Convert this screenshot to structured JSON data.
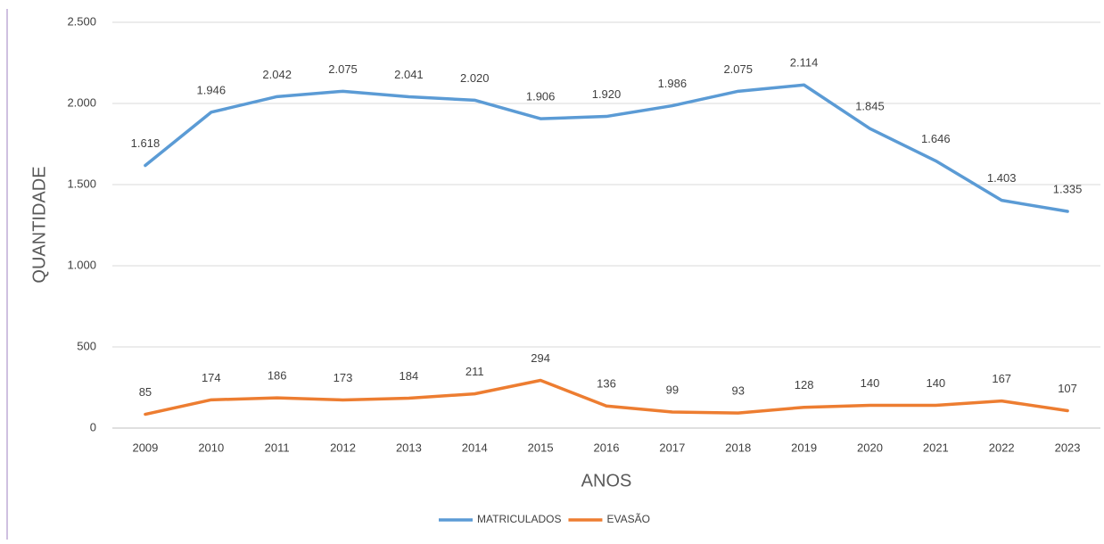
{
  "chart_data": {
    "type": "line",
    "ylabel": "QUANTIDADE",
    "xlabel": "ANOS",
    "categories": [
      "2009",
      "2010",
      "2011",
      "2012",
      "2013",
      "2014",
      "2015",
      "2016",
      "2017",
      "2018",
      "2019",
      "2020",
      "2021",
      "2022",
      "2023"
    ],
    "series": [
      {
        "name": "MATRICULADOS",
        "color": "#5b9bd5",
        "values": [
          1618,
          1946,
          2042,
          2075,
          2041,
          2020,
          1906,
          1920,
          1986,
          2075,
          2114,
          1845,
          1646,
          1403,
          1335
        ],
        "value_labels": [
          "1.618",
          "1.946",
          "2.042",
          "2.075",
          "2.041",
          "2.020",
          "1.906",
          "1.920",
          "1.986",
          "2.075",
          "2.114",
          "1.845",
          "1.646",
          "1.403",
          "1.335"
        ]
      },
      {
        "name": "EVASÃO",
        "color": "#ed7d31",
        "values": [
          85,
          174,
          186,
          173,
          184,
          211,
          294,
          136,
          99,
          93,
          128,
          140,
          140,
          167,
          107
        ]
      }
    ],
    "ylim": [
      0,
      2500
    ],
    "yticks": [
      0,
      500,
      {
        "value": 1000,
        "label": "1.000"
      },
      {
        "value": 1500,
        "label": "1.500"
      },
      {
        "value": 2000,
        "label": "2.000"
      },
      {
        "value": 2500,
        "label": "2.500"
      }
    ],
    "grid": true,
    "legend": "bottom"
  }
}
